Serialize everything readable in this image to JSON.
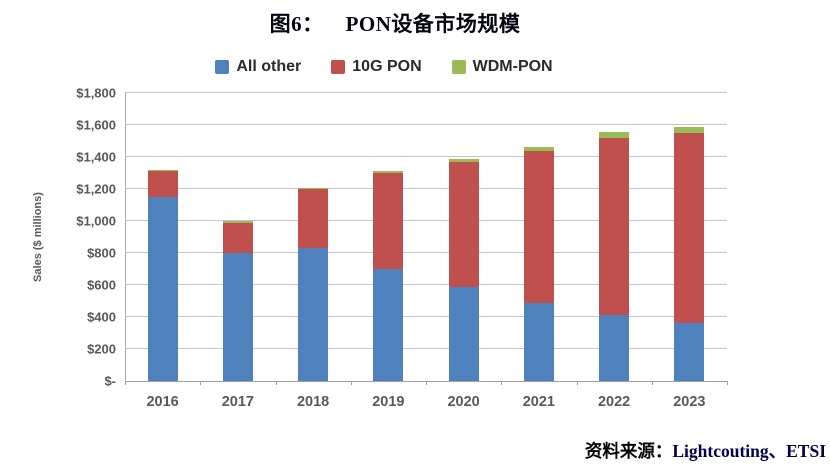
{
  "title": {
    "prefix": "图6：",
    "text": "PON设备市场规模"
  },
  "source": {
    "label": "资料来源：",
    "value": "Lightcouting、ETSI"
  },
  "colors": {
    "all_other": "#4f81bd",
    "ten_g_pon": "#c0504d",
    "wdm_pon": "#9bbb59",
    "gridline": "#c4c4c4",
    "axis_text": "#595959"
  },
  "chart_data": {
    "type": "bar",
    "stacked": true,
    "title": "图6： PON设备市场规模",
    "categories": [
      "2016",
      "2017",
      "2018",
      "2019",
      "2020",
      "2021",
      "2022",
      "2023"
    ],
    "series": [
      {
        "name": "All other",
        "color": "#4f81bd",
        "values": [
          1150,
          800,
          830,
          700,
          585,
          490,
          415,
          360
        ]
      },
      {
        "name": "10G PON",
        "color": "#c0504d",
        "values": [
          160,
          190,
          370,
          600,
          785,
          945,
          1105,
          1190
        ]
      },
      {
        "name": "WDM-PON",
        "color": "#9bbb59",
        "values": [
          10,
          10,
          8,
          12,
          15,
          25,
          35,
          40
        ]
      }
    ],
    "totals": [
      1320,
      1000,
      1208,
      1312,
      1385,
      1460,
      1555,
      1590
    ],
    "xlabel": "",
    "ylabel": "Sales ($ millions)",
    "ylim": [
      0,
      1800
    ],
    "ytick_step": 200,
    "ytick_labels": [
      "$-",
      "$200",
      "$400",
      "$600",
      "$800",
      "$1,000",
      "$1,200",
      "$1,400",
      "$1,600",
      "$1,800"
    ],
    "legend_position": "top",
    "grid": true
  }
}
